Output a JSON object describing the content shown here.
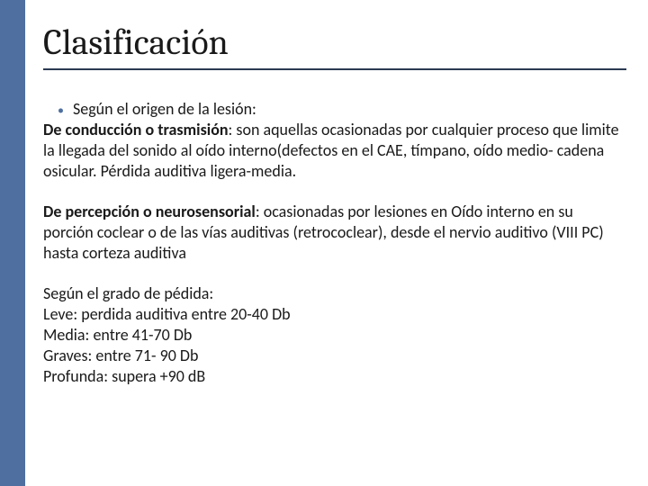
{
  "slide": {
    "title": "Clasificación",
    "sidebar_color": "#4f6fa0",
    "rule_color": "#2a3a52",
    "bullet_color": "#4f6fa0",
    "text_color": "#1a1a1a",
    "background_color": "#ffffff",
    "title_font_family": "Cambria",
    "body_font_family": "Calibri",
    "title_fontsize": 40,
    "body_fontsize": 18,
    "bullet_item": "Según el origen de la lesión:",
    "para1_bold": "De conducción o trasmisión",
    "para1_rest": ": son aquellas ocasionadas por cualquier proceso que limite la llegada del sonido al oído interno(defectos en el CAE, tímpano, oído medio- cadena osicular. Pérdida auditiva ligera-media.",
    "para2_bold": "De percepción o neurosensorial",
    "para2_rest": ": ocasionadas por lesiones en Oído interno en su porción coclear o de las vías auditivas (retrococlear), desde el nervio auditivo (VIII PC) hasta corteza auditiva",
    "grade_intro": "Según el grado de pédida:",
    "grade_lines": [
      "Leve: perdida auditiva entre 20-40 Db",
      "Media:  entre 41-70 Db",
      "Graves:  entre 71- 90 Db",
      "Profunda: supera +90 dB"
    ]
  }
}
